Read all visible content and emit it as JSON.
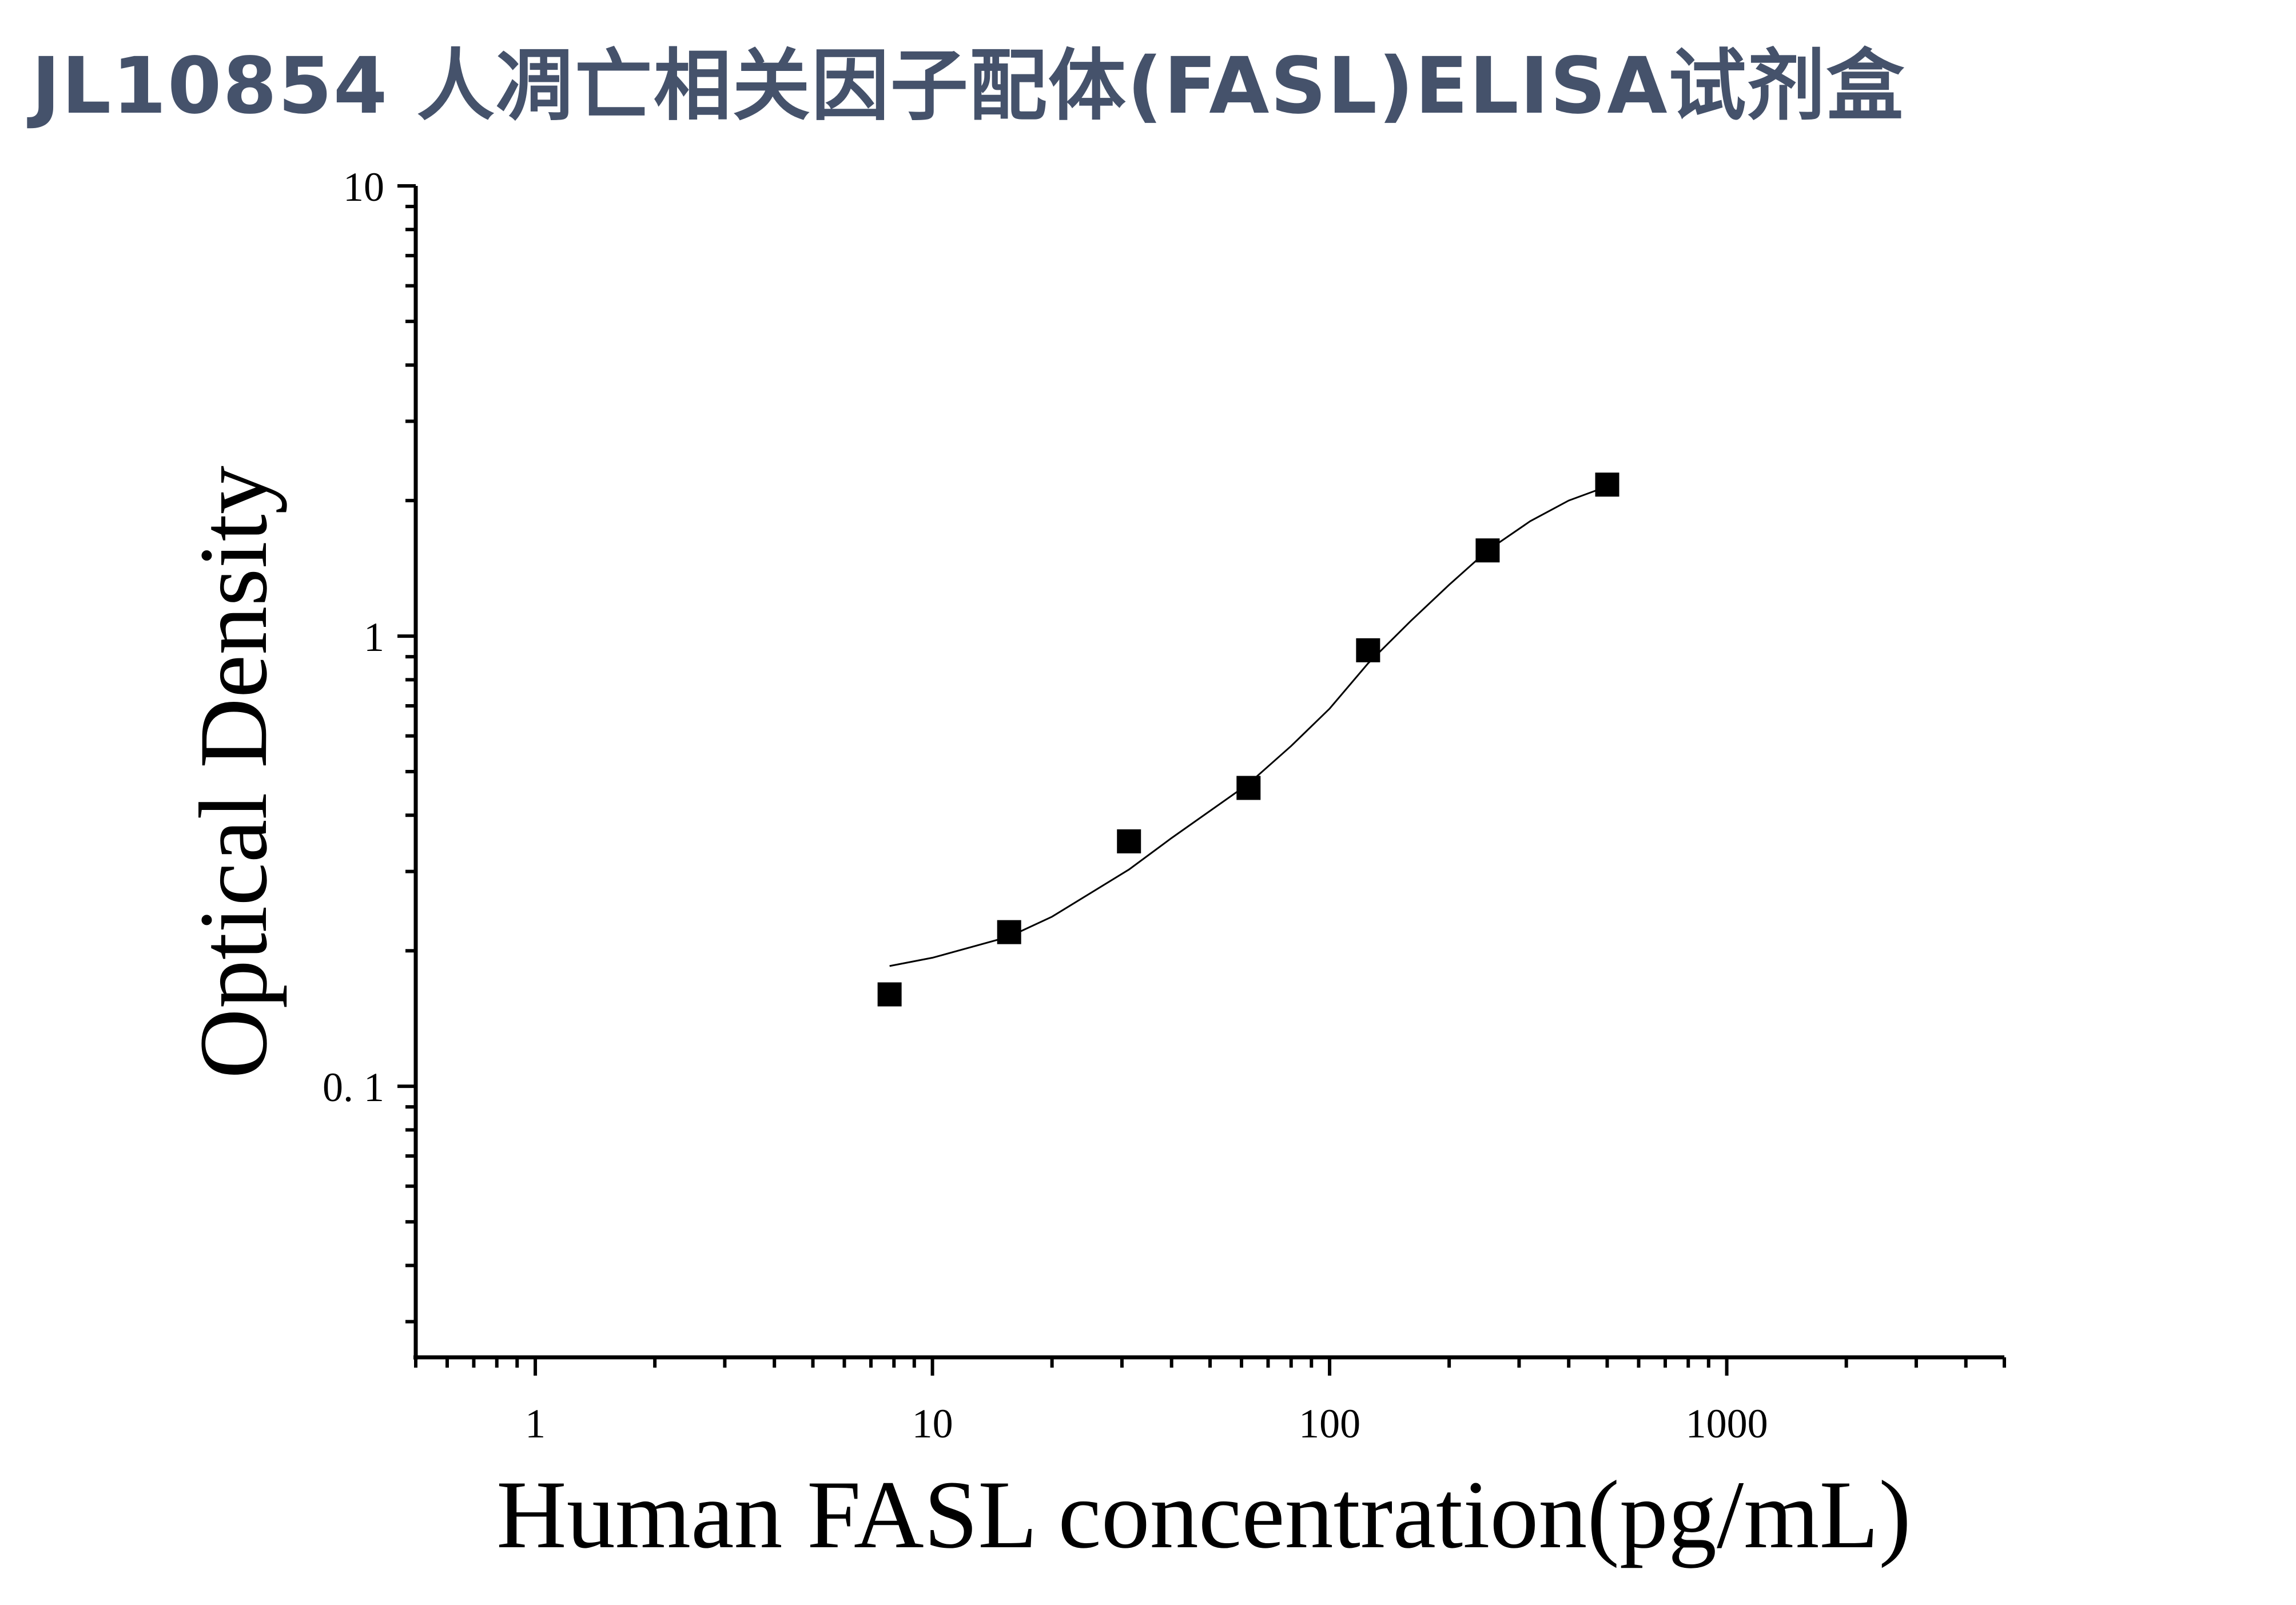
{
  "page": {
    "title": "JL10854 人凋亡相关因子配体(FASL)ELISA试剂盒"
  },
  "chart_data": {
    "type": "scatter",
    "title": "JL10854 人凋亡相关因子配体(FASL)ELISA试剂盒",
    "xlabel": "Human FASL concentration(pg/mL)",
    "ylabel": "Optical Density",
    "x_scale": "log",
    "y_scale": "log",
    "xlim": [
      0.5,
      5000
    ],
    "ylim": [
      0.025,
      10
    ],
    "x_ticks": [
      1,
      10,
      100,
      1000
    ],
    "x_tick_labels": [
      "1",
      "10",
      "100",
      "1000"
    ],
    "y_ticks": [
      0.1,
      1,
      10
    ],
    "y_tick_labels": [
      "0. 1",
      "1",
      "10"
    ],
    "grid": false,
    "legend": "none",
    "series": [
      {
        "marker": "square",
        "color": "#000000",
        "x": [
          7.8,
          15.6,
          31.25,
          62.5,
          125,
          250,
          500
        ],
        "y": [
          0.16,
          0.22,
          0.35,
          0.46,
          0.93,
          1.55,
          2.17
        ]
      }
    ],
    "fit_curve": {
      "color": "#000000",
      "x": [
        7.8,
        10,
        15.6,
        20,
        31.25,
        40,
        62.5,
        80,
        100,
        125,
        160,
        200,
        250,
        320,
        400,
        500
      ],
      "y": [
        0.185,
        0.193,
        0.215,
        0.238,
        0.303,
        0.356,
        0.47,
        0.57,
        0.69,
        0.87,
        1.08,
        1.3,
        1.55,
        1.8,
        2.0,
        2.15
      ]
    }
  }
}
